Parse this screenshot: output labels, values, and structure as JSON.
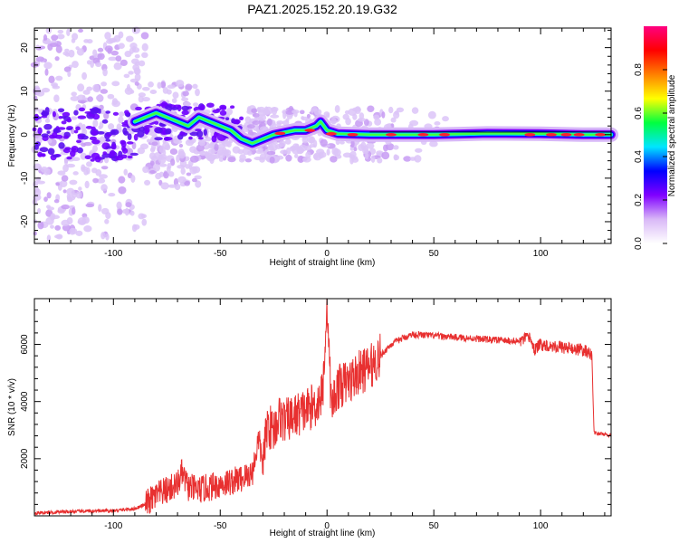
{
  "figure": {
    "title": "PAZ1.2025.152.20.19.G32"
  },
  "chart_data": [
    {
      "type": "heatmap",
      "name": "spectrogram",
      "xlabel": "Height of straight line (km)",
      "ylabel": "Frequency (Hz)",
      "xlim": [
        -137,
        133
      ],
      "ylim": [
        -25,
        24.5
      ],
      "xticks": [
        -100,
        -50,
        0,
        50,
        100
      ],
      "yticks": [
        -20,
        -10,
        0,
        10,
        20
      ],
      "colorbar": {
        "label": "Normalized spectral amplitude",
        "range": [
          0,
          1
        ],
        "ticks": [
          0.0,
          0.2,
          0.4,
          0.6,
          0.8
        ],
        "tick_labels": [
          "0.0",
          "0.2",
          "0.4",
          "0.6",
          "0.8"
        ],
        "colors": [
          "#ffffff",
          "#d9b8f7",
          "#8000ff",
          "#0000ff",
          "#00e5ff",
          "#00ff40",
          "#ffff00",
          "#ff8000",
          "#ff0000",
          "#ff0080"
        ]
      },
      "ridge": [
        {
          "x": -90,
          "y": 3
        },
        {
          "x": -80,
          "y": 5
        },
        {
          "x": -75,
          "y": 4
        },
        {
          "x": -70,
          "y": 3
        },
        {
          "x": -65,
          "y": 2
        },
        {
          "x": -60,
          "y": 4
        },
        {
          "x": -55,
          "y": 3
        },
        {
          "x": -50,
          "y": 2
        },
        {
          "x": -45,
          "y": 1
        },
        {
          "x": -40,
          "y": -1
        },
        {
          "x": -35,
          "y": -2
        },
        {
          "x": -30,
          "y": -1
        },
        {
          "x": -25,
          "y": 0
        },
        {
          "x": -20,
          "y": 0.5
        },
        {
          "x": -15,
          "y": 1
        },
        {
          "x": -10,
          "y": 1
        },
        {
          "x": -5,
          "y": 2
        },
        {
          "x": -3,
          "y": 3
        },
        {
          "x": 0,
          "y": 1
        },
        {
          "x": 5,
          "y": 0.2
        },
        {
          "x": 20,
          "y": 0
        },
        {
          "x": 50,
          "y": 0
        },
        {
          "x": 75,
          "y": 0.3
        },
        {
          "x": 100,
          "y": 0.2
        },
        {
          "x": 120,
          "y": 0
        },
        {
          "x": 133,
          "y": 0
        }
      ]
    },
    {
      "type": "line",
      "name": "snr",
      "xlabel": "Height of straight line (km)",
      "ylabel": "SNR (10 * v/v)",
      "xlim": [
        -137,
        133
      ],
      "ylim": [
        0,
        7600
      ],
      "xticks": [
        -100,
        -50,
        0,
        50,
        100
      ],
      "yticks": [
        2000,
        4000,
        6000
      ],
      "color": "#e83030",
      "series": [
        {
          "x": [
            -137,
            -120,
            -100,
            -90,
            -85,
            -80,
            -75,
            -70,
            -68,
            -65,
            -60,
            -55,
            -50,
            -45,
            -40,
            -35,
            -32,
            -30,
            -28,
            -25,
            -22,
            -20,
            -15,
            -10,
            -5,
            -2,
            0,
            2,
            5,
            10,
            15,
            20,
            25,
            30,
            35,
            40,
            50,
            60,
            70,
            80,
            90,
            95,
            97,
            100,
            110,
            120,
            123,
            124,
            125,
            130,
            133
          ],
          "y": [
            100,
            150,
            180,
            250,
            400,
            700,
            900,
            1100,
            1500,
            1000,
            900,
            1000,
            1100,
            1200,
            1300,
            1500,
            2700,
            1800,
            3200,
            3000,
            3500,
            3300,
            3500,
            3700,
            3900,
            4300,
            7600,
            3800,
            4500,
            4700,
            5000,
            5200,
            5600,
            6000,
            6200,
            6350,
            6300,
            6250,
            6200,
            6150,
            6100,
            6250,
            5800,
            6000,
            5900,
            5800,
            5700,
            5600,
            2900,
            2850,
            2800
          ]
        }
      ]
    }
  ]
}
